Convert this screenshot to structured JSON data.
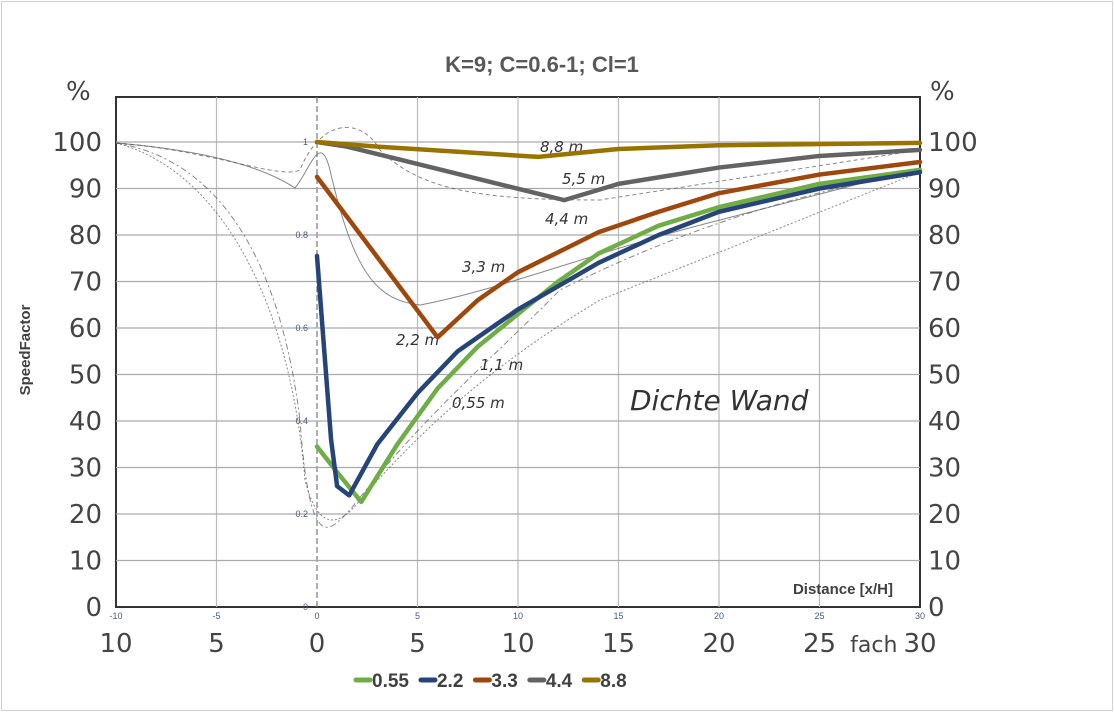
{
  "chart_data": {
    "type": "line",
    "title": "K=9; C=0.6-1; Cl=1",
    "xlabel": "Distance [x/H]",
    "ylabel": "SpeedFactor",
    "xlim": [
      -10,
      30
    ],
    "ylim": [
      0,
      1
    ],
    "x_ticks": [
      "-10",
      "-5",
      "0",
      "5",
      "10",
      "15",
      "20",
      "25",
      "30"
    ],
    "y_ticks": [
      "0",
      "0.2",
      "0.4",
      "0.6",
      "0.8",
      "1"
    ],
    "legend_position": "bottom",
    "series": [
      {
        "name": "0.55",
        "color": "#70ad47",
        "points": [
          [
            0,
            0.345
          ],
          [
            1,
            0.29
          ],
          [
            2.2,
            0.226
          ],
          [
            4,
            0.35
          ],
          [
            6,
            0.47
          ],
          [
            8,
            0.56
          ],
          [
            10,
            0.63
          ],
          [
            12,
            0.7
          ],
          [
            14,
            0.76
          ],
          [
            17,
            0.82
          ],
          [
            20,
            0.86
          ],
          [
            25,
            0.91
          ],
          [
            30,
            0.94
          ]
        ]
      },
      {
        "name": "2.2",
        "color": "#264478",
        "points": [
          [
            0,
            0.755
          ],
          [
            0.7,
            0.36
          ],
          [
            1,
            0.26
          ],
          [
            1.6,
            0.24
          ],
          [
            3,
            0.35
          ],
          [
            5,
            0.46
          ],
          [
            7,
            0.55
          ],
          [
            10,
            0.64
          ],
          [
            14,
            0.74
          ],
          [
            17,
            0.8
          ],
          [
            20,
            0.85
          ],
          [
            25,
            0.9
          ],
          [
            30,
            0.935
          ]
        ]
      },
      {
        "name": "3.3",
        "color": "#9e480e",
        "points": [
          [
            0,
            0.925
          ],
          [
            6,
            0.58
          ],
          [
            8,
            0.66
          ],
          [
            10,
            0.72
          ],
          [
            14,
            0.806
          ],
          [
            17,
            0.85
          ],
          [
            20,
            0.89
          ],
          [
            25,
            0.93
          ],
          [
            30,
            0.957
          ]
        ]
      },
      {
        "name": "4.4",
        "color": "#636363",
        "points": [
          [
            0,
            1.0
          ],
          [
            1.5,
            0.99
          ],
          [
            12.3,
            0.875
          ],
          [
            15,
            0.91
          ],
          [
            20,
            0.945
          ],
          [
            25,
            0.97
          ],
          [
            30,
            0.983
          ]
        ]
      },
      {
        "name": "8.8",
        "color": "#997300",
        "points": [
          [
            0,
            1.0
          ],
          [
            3,
            0.99
          ],
          [
            11,
            0.968
          ],
          [
            15,
            0.985
          ],
          [
            20,
            0.993
          ],
          [
            30,
            0.998
          ]
        ]
      }
    ]
  },
  "background_scan": {
    "unit_left": "%",
    "unit_right": "%",
    "y_labels": [
      "0",
      "10",
      "20",
      "30",
      "40",
      "50",
      "60",
      "70",
      "80",
      "90",
      "100"
    ],
    "x_labels": [
      "10",
      "5",
      "0",
      "5",
      "10",
      "15",
      "20",
      "25",
      "fach",
      "30"
    ],
    "annotation": "Dichte Wand",
    "curve_labels": [
      "8,8 m",
      "5,5 m",
      "4,4 m",
      "3,3 m",
      "2,2 m",
      "1,1 m",
      "0,55 m"
    ]
  }
}
